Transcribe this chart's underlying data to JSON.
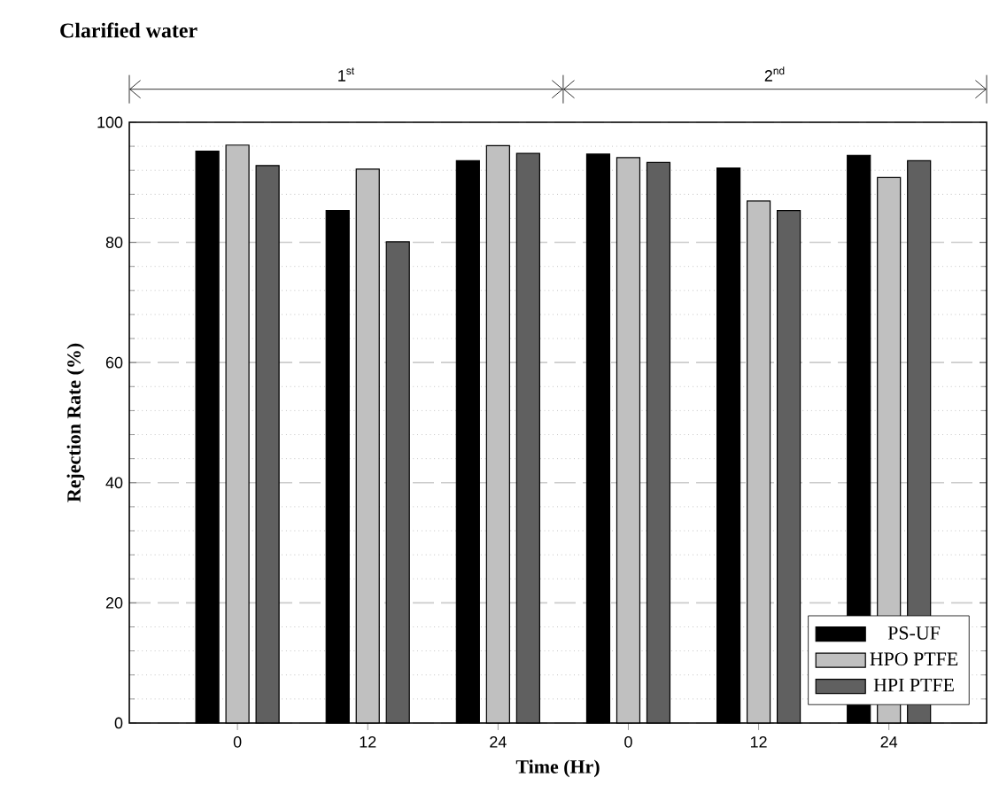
{
  "chart_data": {
    "type": "bar",
    "title": "Clarified water",
    "xlabel": "Time (Hr)",
    "ylabel": "Rejection Rate (%)",
    "categories": [
      "0",
      "12",
      "24",
      "0",
      "12",
      "24"
    ],
    "series": [
      {
        "name": "PS-UF",
        "color": "#000000",
        "values": [
          95.2,
          85.3,
          93.6,
          94.7,
          92.4,
          94.5
        ]
      },
      {
        "name": "HPO PTFE",
        "color": "#c0c0c0",
        "values": [
          96.2,
          92.2,
          96.1,
          94.1,
          86.9,
          90.8
        ]
      },
      {
        "name": "HPI PTFE",
        "color": "#606060",
        "values": [
          92.8,
          80.1,
          94.8,
          93.3,
          85.3,
          93.6
        ]
      }
    ],
    "annotations": [
      "1$^{st}$",
      "2$^{nd}$"
    ],
    "ylim": [
      0,
      100
    ],
    "yticks": [
      0,
      20,
      40,
      60,
      80,
      100
    ],
    "grid": "y",
    "legend": "bottom right"
  }
}
